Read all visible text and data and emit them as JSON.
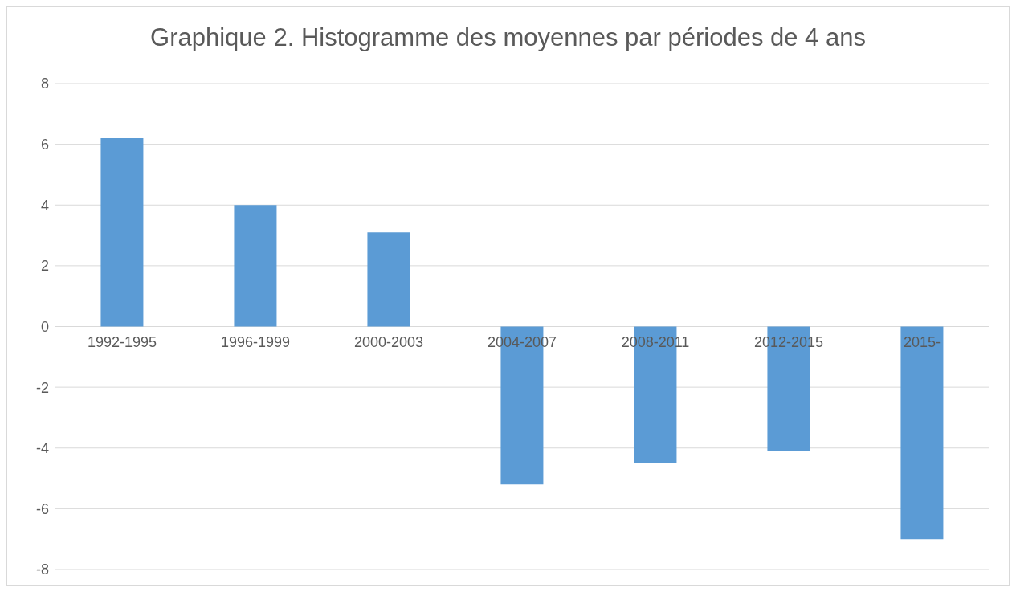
{
  "chart_data": {
    "type": "bar",
    "title": "Graphique 2. Histogramme des moyennes par périodes de 4 ans",
    "categories": [
      "1992-1995",
      "1996-1999",
      "2000-2003",
      "2004-2007",
      "2008-2011",
      "2012-2015",
      "2015-"
    ],
    "values": [
      6.2,
      4.0,
      3.1,
      -5.2,
      -4.5,
      -4.1,
      -7.0
    ],
    "color": "#5b9bd5",
    "ylim": [
      -8,
      8
    ],
    "yticks": [
      -8,
      -6,
      -4,
      -2,
      0,
      2,
      4,
      6,
      8
    ],
    "grid": "y"
  }
}
